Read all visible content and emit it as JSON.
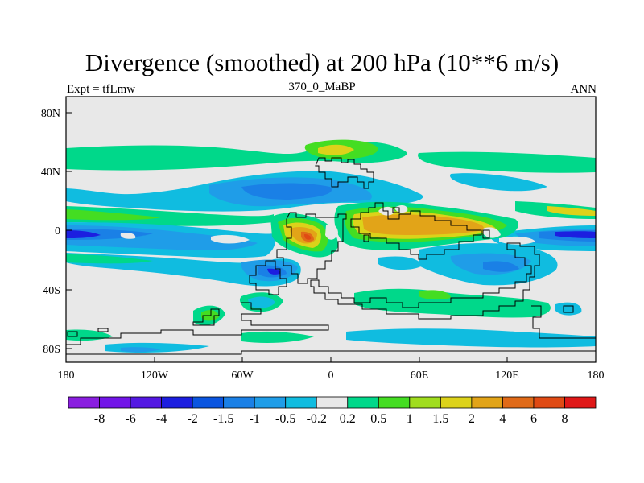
{
  "title": "Divergence (smoothed) at 200 hPa (10**6 m/s)",
  "subtitle_left": "Expt = tfLmw",
  "subtitle_center": "370_0_MaBP",
  "subtitle_right": "ANN",
  "y_ticks": [
    "80N",
    "40N",
    "0",
    "40S",
    "80S"
  ],
  "x_ticks": [
    "180",
    "120W",
    "60W",
    "0",
    "60E",
    "120E",
    "180"
  ],
  "colorbar": {
    "labels": [
      "-8",
      "-6",
      "-4",
      "-2",
      "-1.5",
      "-1",
      "-0.5",
      "-0.2",
      "0.2",
      "0.5",
      "1",
      "1.5",
      "2",
      "4",
      "6",
      "8"
    ],
    "colors": [
      "#8a1ee0",
      "#7215e8",
      "#5418e3",
      "#1c1ee0",
      "#0a55e0",
      "#1a80e6",
      "#1f9de8",
      "#10bce0",
      "#e8e8e8",
      "#00d88a",
      "#44dd22",
      "#a0dd1e",
      "#dcd21a",
      "#e2a418",
      "#e06a18",
      "#e04a14",
      "#e01818"
    ]
  },
  "colors": {
    "neutral": "#e8e8e8",
    "blue_light": "#10bce0",
    "blue_mid": "#1f9de8",
    "blue": "#1a80e6",
    "blue_dark": "#1c1ee0",
    "green": "#00d88a",
    "green2": "#44dd22",
    "yellow": "#dcd21a",
    "orange": "#e2a418",
    "red": "#e04a14"
  }
}
